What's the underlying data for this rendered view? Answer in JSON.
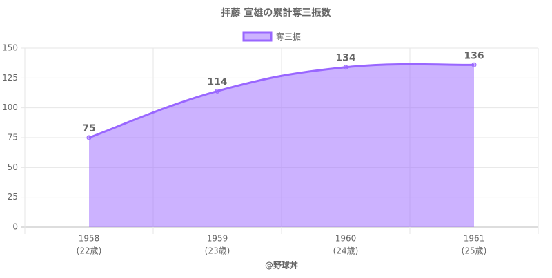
{
  "chart_data": {
    "type": "area",
    "title": "拝藤 宣雄の累計奪三振数",
    "categories": [
      "1958",
      "1959",
      "1960",
      "1961"
    ],
    "category_sublabels": [
      "(22歳)",
      "(23歳)",
      "(24歳)",
      "(25歳)"
    ],
    "series": [
      {
        "name": "奪三振",
        "color": "#9966ff",
        "values": [
          75,
          114,
          134,
          136
        ]
      }
    ],
    "ylim": [
      0,
      150
    ],
    "yticks": [
      0,
      25,
      50,
      75,
      100,
      125,
      150
    ],
    "grid": true,
    "x_label": "@野球丼",
    "legend": "top"
  }
}
